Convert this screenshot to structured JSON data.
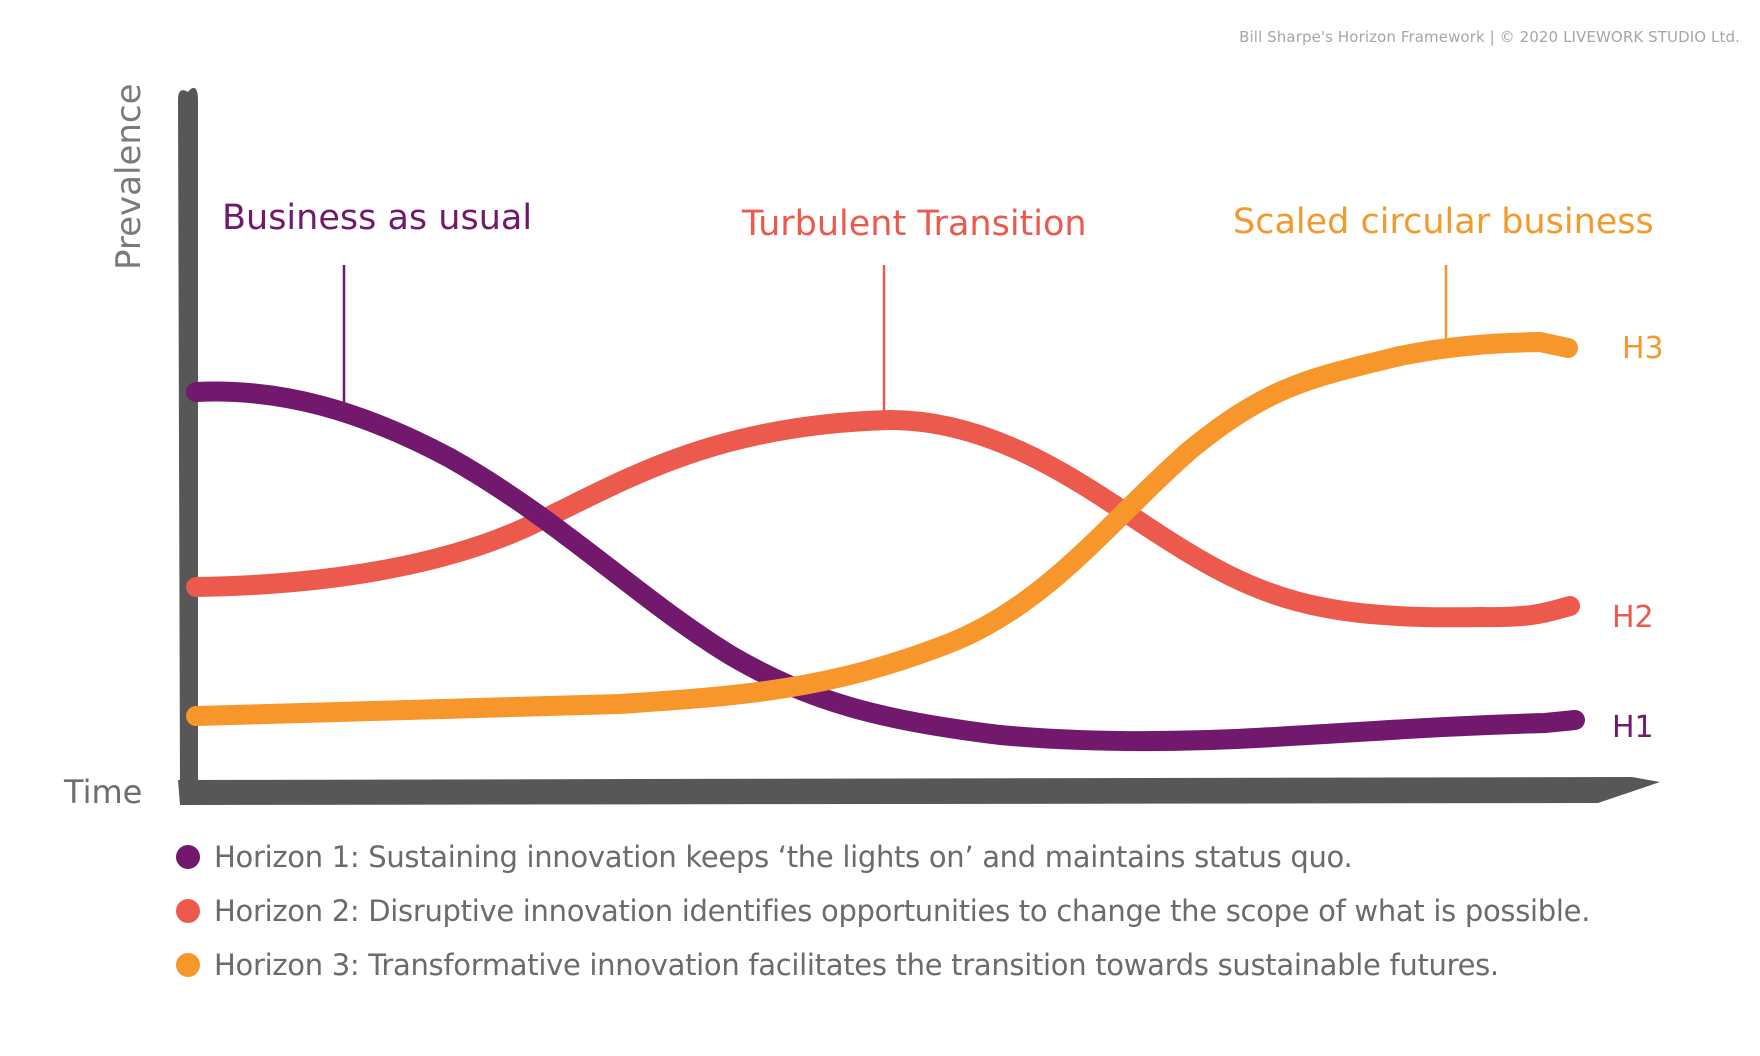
{
  "credit": "Bill Sharpe's Horizon Framework | © 2020 LIVEWORK STUDIO Ltd.",
  "axes": {
    "y_label": "Prevalence",
    "x_label": "Time"
  },
  "colors": {
    "axis": "#575757",
    "h1": "#72196e",
    "h2": "#ec5a4d",
    "h3": "#f7972b",
    "h3_text": "#f39a2c",
    "label_text": "#7a7a7a"
  },
  "horizons": [
    {
      "id": "h1",
      "end_label": "H1",
      "callout": "Business as usual",
      "legend": "Horizon 1: Sustaining innovation keeps ‘the lights on’ and maintains status quo."
    },
    {
      "id": "h2",
      "end_label": "H2",
      "callout": "Turbulent Transition",
      "legend": "Horizon 2: Disruptive innovation identifies opportunities to change the scope of what is possible."
    },
    {
      "id": "h3",
      "end_label": "H3",
      "callout": "Scaled circular business",
      "legend": "Horizon 3: Transformative innovation facilitates the transition towards sustainable futures."
    }
  ]
}
